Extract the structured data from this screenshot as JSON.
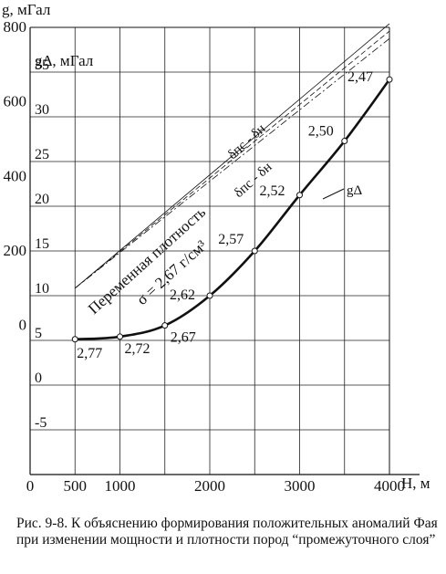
{
  "chart_data": {
    "type": "line",
    "xlabel": "H, м",
    "ylabel": "g, мГал",
    "ylabel_secondary": "gΔ, мГал",
    "x_ticks": [
      {
        "value": 0,
        "label": "0"
      },
      {
        "value": 500,
        "label": "500"
      },
      {
        "value": 1000,
        "label": "1000"
      },
      {
        "value": 2000,
        "label": "2000"
      },
      {
        "value": 3000,
        "label": "3000"
      },
      {
        "value": 4000,
        "label": "4000"
      }
    ],
    "y_ticks": [
      {
        "value": 0,
        "label": "0"
      },
      {
        "value": 200,
        "label": "200"
      },
      {
        "value": 400,
        "label": "400"
      },
      {
        "value": 600,
        "label": "600"
      },
      {
        "value": 800,
        "label": "800"
      }
    ],
    "y2_ticks": [
      {
        "value": -5,
        "label": "-5"
      },
      {
        "value": 0,
        "label": "0"
      },
      {
        "value": 5,
        "label": "5"
      },
      {
        "value": 10,
        "label": "10"
      },
      {
        "value": 15,
        "label": "15"
      },
      {
        "value": 20,
        "label": "20"
      },
      {
        "value": 25,
        "label": "25"
      },
      {
        "value": 30,
        "label": "30"
      },
      {
        "value": 35,
        "label": "35"
      }
    ],
    "xlim": [
      0,
      4000
    ],
    "ylim": [
      -400,
      800
    ],
    "y2lim": [
      -10,
      40
    ],
    "grid": true,
    "series": [
      {
        "name": "gΔ",
        "style": "solid-thick",
        "x": [
          500,
          1000,
          1500,
          2000,
          2500,
          3000,
          3500,
          4000
        ],
        "y": [
          -37,
          -30,
          0,
          80,
          200,
          350,
          495,
          660
        ],
        "point_labels": [
          "2,77",
          "2,72",
          "2,67",
          "2,62",
          "2,57",
          "2,52",
          "2,50",
          "2,47"
        ]
      }
    ],
    "reference_lines": [
      {
        "style": "solid-thin",
        "x": [
          500,
          4000
        ],
        "y": [
          100,
          810
        ]
      },
      {
        "style": "dashed",
        "x": [
          500,
          4000
        ],
        "y": [
          100,
          790
        ]
      },
      {
        "style": "dash-dot",
        "x": [
          500,
          4000
        ],
        "y": [
          100,
          770
        ]
      }
    ],
    "annotations": {
      "variable_density": "Переменная плотность",
      "sigma_label": "σ = 2,67 г/см³",
      "delta_upper": "δпс - δн",
      "delta_lower": "δпс - δн"
    }
  },
  "caption": "Рис. 9-8. К объяснению формирования положительных аномалий Фая при изменении мощности и плотности пород “промежуточного слоя”",
  "colors": {
    "ink": "#111111",
    "grid": "#222222",
    "background": "#ffffff"
  }
}
